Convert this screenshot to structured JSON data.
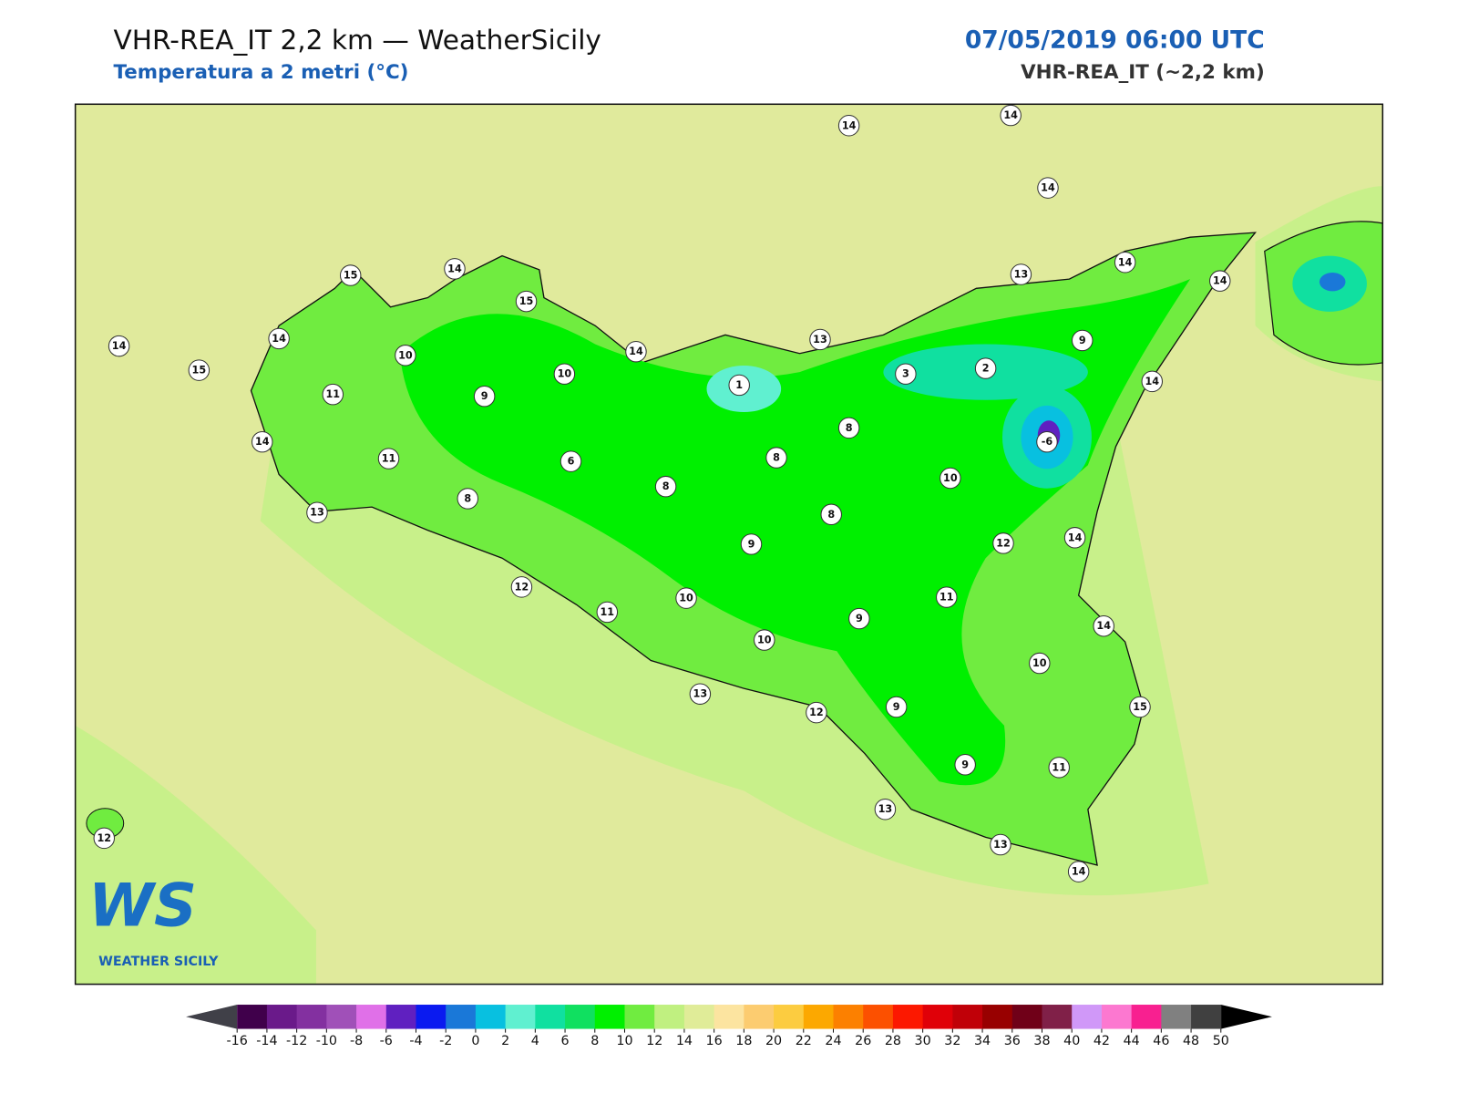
{
  "header": {
    "title": "VHR-REA_IT 2,2 km — WeatherSicily",
    "subtitle": "Temperatura a 2 metri (°C)",
    "datetime": "07/05/2019 06:00 UTC",
    "model": "VHR-REA_IT (~2,2 km)"
  },
  "map": {
    "stations": [
      14,
      14,
      14,
      15,
      14,
      15,
      14,
      14,
      15,
      10,
      11,
      9,
      10,
      14,
      13,
      1,
      3,
      2,
      13,
      14,
      14,
      9,
      14,
      -6,
      8,
      14,
      11,
      6,
      8,
      8,
      8,
      13,
      10,
      8,
      9,
      12,
      14,
      12,
      11,
      10,
      11,
      9,
      10,
      14,
      10,
      13,
      12,
      9,
      15,
      9,
      11,
      13,
      13,
      14,
      12
    ]
  },
  "colorbar": {
    "ticks": [
      -16,
      -14,
      -12,
      -10,
      -8,
      -6,
      -4,
      -2,
      0,
      2,
      4,
      6,
      8,
      10,
      12,
      14,
      16,
      18,
      20,
      22,
      24,
      26,
      28,
      30,
      32,
      34,
      36,
      38,
      40,
      42,
      44,
      46,
      48,
      50
    ],
    "colors": [
      "#40004b",
      "#6a1a8a",
      "#8330a0",
      "#a050b8",
      "#e070e8",
      "#6020c0",
      "#0a1af0",
      "#1a78d8",
      "#08c0e0",
      "#60f0d0",
      "#10e0a0",
      "#10e060",
      "#00f000",
      "#70ec40",
      "#c0f080",
      "#e0ec98",
      "#fce4a0",
      "#fccc70",
      "#fccc40",
      "#fca800",
      "#fc8000",
      "#fc5000",
      "#fc1800",
      "#e00008",
      "#c00008",
      "#980000",
      "#700018",
      "#802048",
      "#d098f8",
      "#fc78d0",
      "#f82090",
      "#808080",
      "#404040"
    ]
  },
  "logo": {
    "text": "WS",
    "caption": "WEATHER SICILY"
  }
}
